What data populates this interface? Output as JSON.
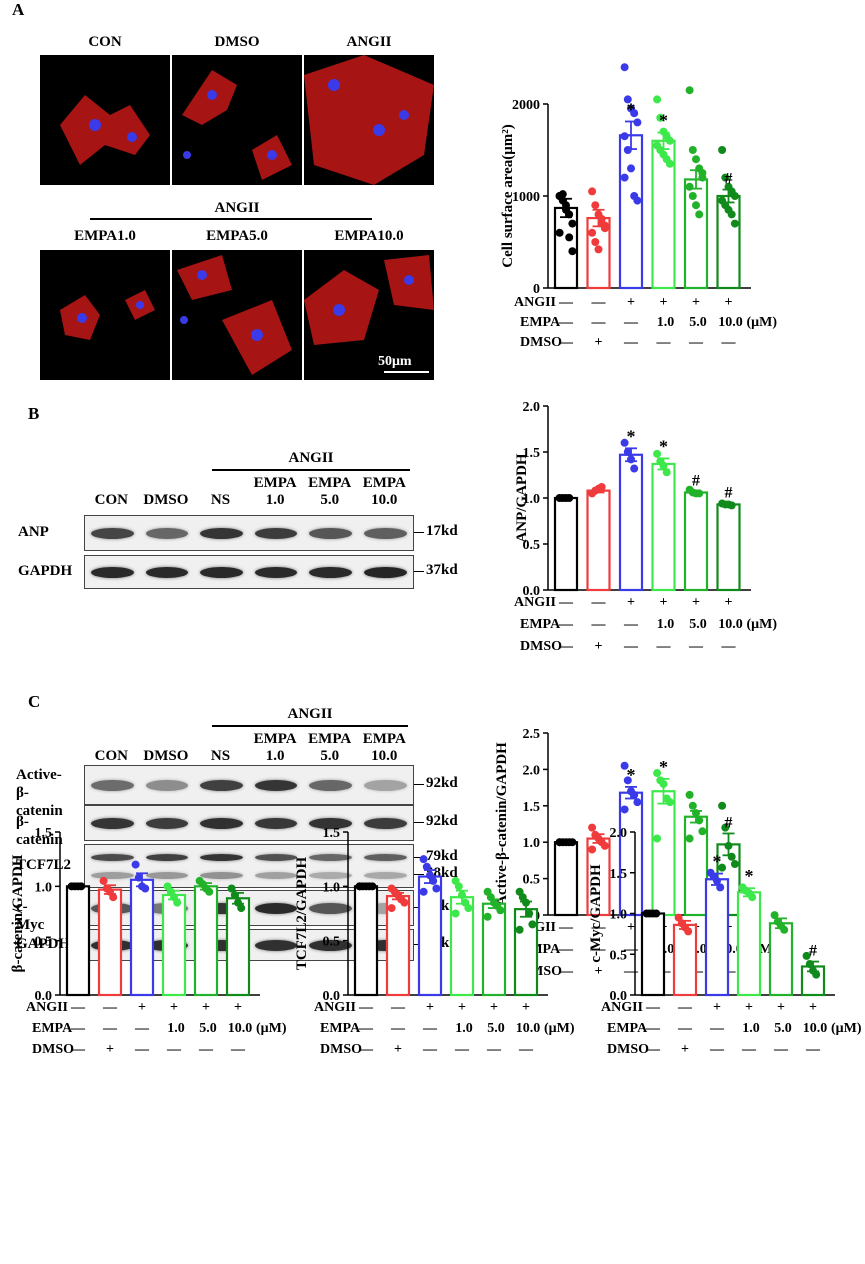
{
  "panels": {
    "A": "A",
    "B": "B",
    "C": "C"
  },
  "micro": {
    "row1": [
      "CON",
      "DMSO",
      "ANGII"
    ],
    "group_label": "ANGII",
    "row2": [
      "EMPA1.0",
      "EMPA5.0",
      "EMPA10.0"
    ],
    "scale_bar": "50μm"
  },
  "blotB": {
    "angii": "ANGII",
    "lanes": [
      "CON",
      "DMSO",
      "NS",
      "EMPA\n1.0",
      "EMPA\n5.0",
      "EMPA\n10.0"
    ],
    "rows": [
      {
        "label": "ANP",
        "kd": [
          "17kd"
        ],
        "intensity": [
          0.78,
          0.62,
          0.85,
          0.82,
          0.7,
          0.66
        ]
      },
      {
        "label": "GAPDH",
        "kd": [
          "37kd"
        ],
        "intensity": [
          0.9,
          0.9,
          0.9,
          0.9,
          0.9,
          0.92
        ]
      }
    ]
  },
  "blotC": {
    "angii": "ANGII",
    "lanes": [
      "CON",
      "DMSO",
      "NS",
      "EMPA\n1.0",
      "EMPA\n5.0",
      "EMPA\n10.0"
    ],
    "rows": [
      {
        "label": "Active-\nβ-catenin",
        "kd": [
          "92kd"
        ],
        "intensity": [
          0.6,
          0.45,
          0.8,
          0.85,
          0.62,
          0.35
        ]
      },
      {
        "label": "β-catenin",
        "kd": [
          "92kd"
        ],
        "intensity": [
          0.85,
          0.82,
          0.88,
          0.84,
          0.86,
          0.82
        ]
      },
      {
        "label": "TCF7L2",
        "kd": [
          "79kd",
          "58kd"
        ],
        "intensity": [
          0.75,
          0.8,
          0.85,
          0.72,
          0.62,
          0.66
        ]
      },
      {
        "label": "c-Myc",
        "kd": [
          "66kd"
        ],
        "intensity": [
          0.7,
          0.55,
          0.85,
          0.9,
          0.7,
          0.35
        ]
      },
      {
        "label": "GAPDH",
        "kd": [
          "37kd"
        ],
        "intensity": [
          0.88,
          0.88,
          0.88,
          0.88,
          0.88,
          0.88
        ]
      }
    ]
  },
  "treatment": {
    "rows": [
      {
        "label": "ANGII",
        "marks": [
          "—",
          "—",
          "+",
          "+",
          "+",
          "+"
        ]
      },
      {
        "label": "EMPA",
        "marks": [
          "—",
          "—",
          "—",
          "1.0",
          "5.0",
          "10.0"
        ],
        "unit": "(μM)"
      },
      {
        "label": "DMSO",
        "marks": [
          "—",
          "+",
          "—",
          "—",
          "—",
          "—"
        ]
      }
    ]
  },
  "colors": [
    "#000000",
    "#ef3b3b",
    "#3a3ae8",
    "#3ce84a",
    "#22b22a",
    "#118a1c"
  ],
  "chart_data": [
    {
      "id": "surface",
      "type": "bar",
      "ylabel": "Cell surface area(μm²)",
      "ylim": [
        0,
        2000
      ],
      "ticks": [
        0,
        1000,
        2000
      ],
      "categories": [
        "CON",
        "DMSO",
        "ANGII",
        "EMPA1.0",
        "EMPA5.0",
        "EMPA10.0"
      ],
      "values": [
        870,
        760,
        1660,
        1600,
        1180,
        1000
      ],
      "sem": [
        100,
        90,
        150,
        90,
        100,
        70
      ],
      "annotations": [
        "",
        "",
        "*",
        "*",
        "",
        "#"
      ],
      "points": [
        [
          1000,
          950,
          850,
          800,
          700,
          600,
          1020,
          900,
          550,
          400,
          1000
        ],
        [
          1050,
          900,
          800,
          700,
          650,
          600,
          500,
          420,
          750,
          680
        ],
        [
          2400,
          2050,
          1950,
          1900,
          1800,
          1650,
          1500,
          1300,
          1000,
          950,
          1200
        ],
        [
          2050,
          1850,
          1700,
          1650,
          1600,
          1550,
          1500,
          1450,
          1400,
          1350
        ],
        [
          2150,
          1500,
          1400,
          1300,
          1200,
          1100,
          1000,
          900,
          800,
          1250
        ],
        [
          1500,
          1200,
          1100,
          1050,
          1000,
          950,
          900,
          850,
          800,
          700
        ]
      ]
    },
    {
      "id": "anp",
      "type": "bar",
      "ylabel": "ANP/GAPDH",
      "ylim": [
        0,
        2.0
      ],
      "ticks": [
        "0.0",
        "0.5",
        "1.0",
        "1.5",
        "2.0"
      ],
      "categories": [
        "CON",
        "DMSO",
        "ANGII",
        "EMPA1.0",
        "EMPA5.0",
        "EMPA10.0"
      ],
      "values": [
        1.0,
        1.08,
        1.47,
        1.37,
        1.06,
        0.93
      ],
      "sem": [
        0.01,
        0.02,
        0.07,
        0.06,
        0.01,
        0.01
      ],
      "annotations": [
        "",
        "",
        "*",
        "*",
        "#",
        "#"
      ],
      "points": [
        [
          1,
          1,
          1,
          1
        ],
        [
          1.05,
          1.08,
          1.1,
          1.12
        ],
        [
          1.6,
          1.5,
          1.42,
          1.32
        ],
        [
          1.48,
          1.4,
          1.35,
          1.28
        ],
        [
          1.09,
          1.06,
          1.05,
          1.05
        ],
        [
          0.94,
          0.93,
          0.93,
          0.92
        ]
      ]
    },
    {
      "id": "active",
      "type": "bar",
      "ylabel": "Active-β-catenin/GAPDH",
      "ylim": [
        0,
        2.5
      ],
      "ticks": [
        "0.0",
        "0.5",
        "1.0",
        "1.5",
        "2.0",
        "2.5"
      ],
      "categories": [
        "CON",
        "DMSO",
        "ANGII",
        "EMPA1.0",
        "EMPA5.0",
        "EMPA10.0"
      ],
      "values": [
        1.0,
        1.05,
        1.68,
        1.7,
        1.35,
        0.97
      ],
      "sem": [
        0.01,
        0.06,
        0.08,
        0.17,
        0.08,
        0.15
      ],
      "annotations": [
        "",
        "",
        "*",
        "*",
        "",
        "#"
      ],
      "points": [
        [
          1,
          1,
          1,
          1,
          1,
          1
        ],
        [
          1.2,
          1.1,
          1.05,
          1.0,
          0.95,
          0.9
        ],
        [
          2.05,
          1.85,
          1.7,
          1.65,
          1.55,
          1.45
        ],
        [
          1.95,
          1.85,
          1.8,
          1.6,
          1.55,
          1.05
        ],
        [
          1.65,
          1.5,
          1.4,
          1.3,
          1.15,
          1.05
        ],
        [
          1.5,
          1.2,
          0.95,
          0.8,
          0.7,
          0.65
        ]
      ]
    },
    {
      "id": "bcat",
      "type": "bar",
      "ylabel": "β-catenin/GAPDH",
      "ylim": [
        0,
        1.5
      ],
      "ticks": [
        "0.0",
        "0.5",
        "1.0",
        "1.5"
      ],
      "categories": [
        "CON",
        "DMSO",
        "ANGII",
        "EMPA1.0",
        "EMPA5.0",
        "EMPA10.0"
      ],
      "values": [
        1.0,
        0.97,
        1.06,
        0.92,
        1.0,
        0.89
      ],
      "sem": [
        0.01,
        0.04,
        0.06,
        0.04,
        0.03,
        0.05
      ],
      "annotations": [
        "",
        "",
        "",
        "",
        "",
        ""
      ],
      "points": [
        [
          1,
          1,
          1,
          1
        ],
        [
          1.05,
          0.98,
          0.95,
          0.9
        ],
        [
          1.2,
          1.08,
          1.0,
          0.98
        ],
        [
          1.0,
          0.95,
          0.9,
          0.85
        ],
        [
          1.05,
          1.02,
          0.98,
          0.95
        ],
        [
          0.98,
          0.92,
          0.85,
          0.8
        ]
      ]
    },
    {
      "id": "tcf",
      "type": "bar",
      "ylabel": "TCF7L2/GAPDH",
      "ylim": [
        0,
        1.5
      ],
      "ticks": [
        "0.0",
        "0.5",
        "1.0",
        "1.5"
      ],
      "categories": [
        "CON",
        "DMSO",
        "ANGII",
        "EMPA1.0",
        "EMPA5.0",
        "EMPA10.0"
      ],
      "values": [
        1.0,
        0.91,
        1.09,
        0.9,
        0.84,
        0.79
      ],
      "sem": [
        0.01,
        0.03,
        0.06,
        0.06,
        0.04,
        0.07
      ],
      "annotations": [
        "",
        "",
        "",
        "",
        "",
        ""
      ],
      "points": [
        [
          1,
          1,
          1,
          1,
          1,
          1
        ],
        [
          0.98,
          0.95,
          0.92,
          0.88,
          0.85,
          0.8
        ],
        [
          1.25,
          1.18,
          1.1,
          1.05,
          0.98,
          0.95
        ],
        [
          1.05,
          1.0,
          0.92,
          0.85,
          0.8,
          0.75
        ],
        [
          0.95,
          0.9,
          0.85,
          0.82,
          0.78,
          0.72
        ],
        [
          0.95,
          0.9,
          0.85,
          0.75,
          0.65,
          0.6
        ]
      ]
    },
    {
      "id": "cmyc",
      "type": "bar",
      "ylabel": "c-Myc/GAPDH",
      "ylim": [
        0,
        2.0
      ],
      "ticks": [
        "0.0",
        "0.5",
        "1.0",
        "1.5",
        "2.0"
      ],
      "categories": [
        "CON",
        "DMSO",
        "ANGII",
        "EMPA1.0",
        "EMPA5.0",
        "EMPA10.0"
      ],
      "values": [
        1.0,
        0.86,
        1.42,
        1.26,
        0.88,
        0.35
      ],
      "sem": [
        0.01,
        0.05,
        0.07,
        0.05,
        0.06,
        0.06
      ],
      "annotations": [
        "",
        "",
        "*",
        "*",
        "",
        "#"
      ],
      "points": [
        [
          1,
          1,
          1,
          1
        ],
        [
          0.95,
          0.88,
          0.83,
          0.78
        ],
        [
          1.5,
          1.45,
          1.4,
          1.32
        ],
        [
          1.32,
          1.28,
          1.25,
          1.2
        ],
        [
          0.98,
          0.9,
          0.85,
          0.8
        ],
        [
          0.48,
          0.38,
          0.3,
          0.25
        ]
      ]
    }
  ]
}
